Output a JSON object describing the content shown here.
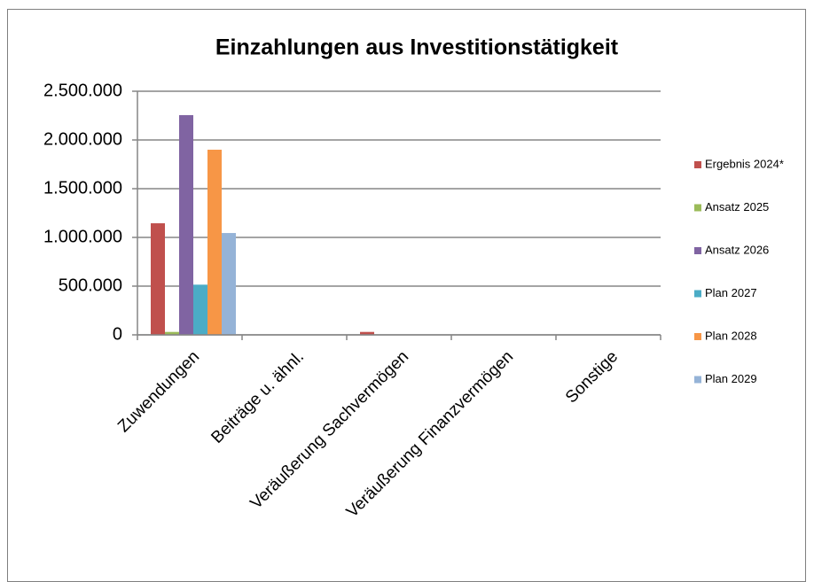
{
  "chart_data": {
    "type": "bar",
    "title": "Einzahlungen aus Investitionstätigkeit",
    "categories": [
      "Zuwendungen",
      "Beiträge u. ähnl.",
      "Veräußerung Sachvermögen",
      "Veräußerung Finanzvermögen",
      "Sonstige"
    ],
    "series": [
      {
        "name": "Ergebnis 2024*",
        "color": "#c0504d",
        "values": [
          1145000,
          0,
          30000,
          0,
          0
        ]
      },
      {
        "name": "Ansatz 2025",
        "color": "#9bbb59",
        "values": [
          30000,
          0,
          0,
          0,
          0
        ]
      },
      {
        "name": "Ansatz 2026",
        "color": "#8064a2",
        "values": [
          2255000,
          0,
          0,
          0,
          0
        ]
      },
      {
        "name": "Plan 2027",
        "color": "#4bacc6",
        "values": [
          515000,
          0,
          0,
          0,
          0
        ]
      },
      {
        "name": "Plan 2028",
        "color": "#f79646",
        "values": [
          1900000,
          0,
          0,
          0,
          0
        ]
      },
      {
        "name": "Plan 2029",
        "color": "#95b3d7",
        "values": [
          1045000,
          0,
          0,
          0,
          0
        ]
      }
    ],
    "ylim": [
      0,
      2500000
    ],
    "yticks": [
      0,
      {
        "value": 500000,
        "label": "500.000"
      },
      {
        "value": 1000000,
        "label": "1.000.000"
      },
      {
        "value": 1500000,
        "label": "1.500.000"
      },
      {
        "value": 2000000,
        "label": "2.000.000"
      },
      {
        "value": 2500000,
        "label": "2.500.000"
      }
    ],
    "grid": true,
    "legend": "right"
  }
}
